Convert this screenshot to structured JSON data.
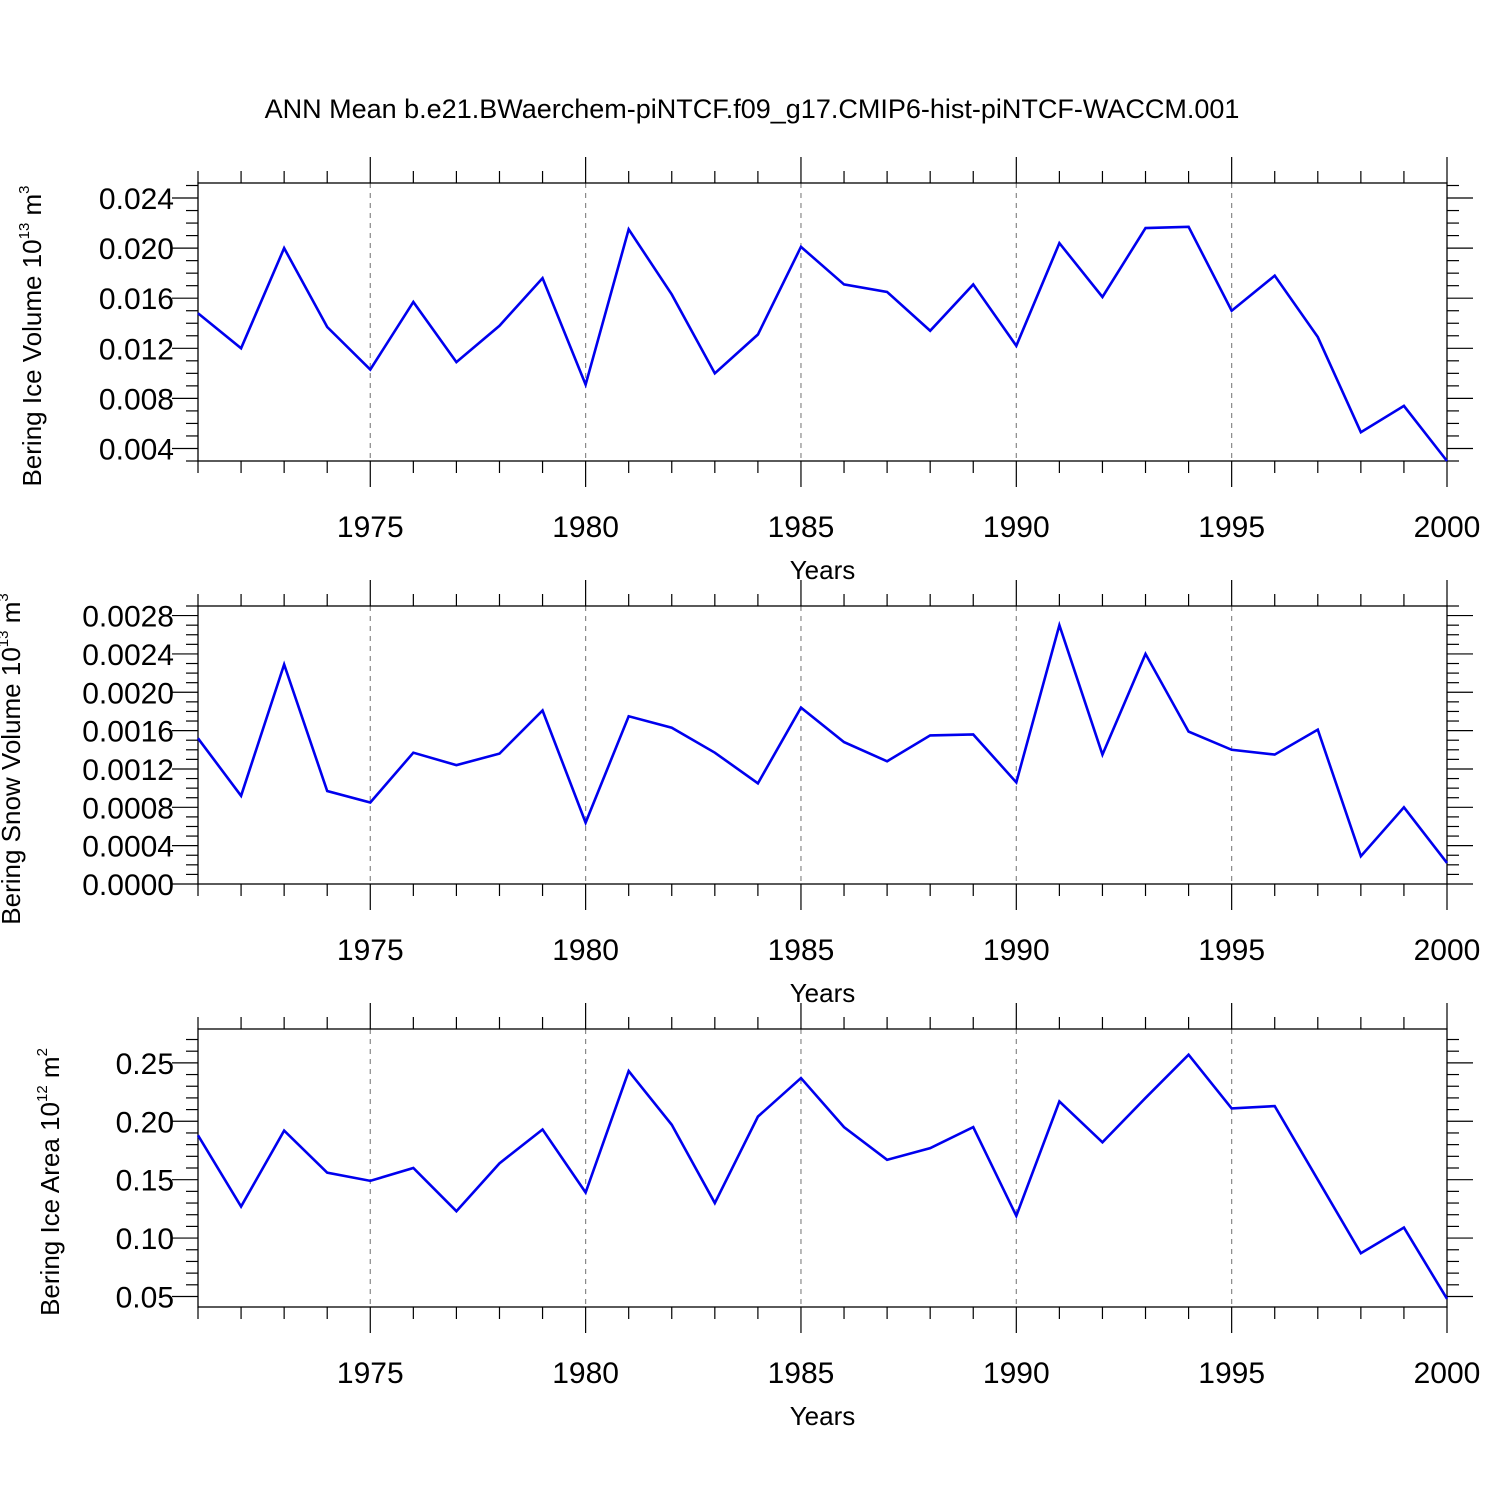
{
  "title": "ANN Mean b.e21.BWaerchem-piNTCF.f09_g17.CMIP6-hist-piNTCF-WACCM.001",
  "line_color": "#0000ee",
  "chart_data": [
    {
      "type": "line",
      "title": "ANN Mean b.e21.BWaerchem-piNTCF.f09_g17.CMIP6-hist-piNTCF-WACCM.001",
      "ylabel": {
        "main": "Bering Ice Volume 10",
        "exp": "13",
        "unit": " m",
        "unit_exp": "3"
      },
      "xlabel": "Years",
      "xlim": [
        1971,
        2000
      ],
      "ylim": [
        0.003,
        0.0252
      ],
      "x_ticks": [
        1975,
        1980,
        1985,
        1990,
        1995,
        2000
      ],
      "x_tick_labels": [
        "1975",
        "1980",
        "1985",
        "1990",
        "1995",
        "2000"
      ],
      "y_ticks": [
        0.004,
        0.008,
        0.012,
        0.016,
        0.02,
        0.024
      ],
      "y_tick_labels": [
        "0.004",
        "0.008",
        "0.012",
        "0.016",
        "0.020",
        "0.024"
      ],
      "y_minor_step": 0.001,
      "grid": "vertical dashed at major x ticks",
      "x": [
        1971,
        1972,
        1973,
        1974,
        1975,
        1976,
        1977,
        1978,
        1979,
        1980,
        1981,
        1982,
        1983,
        1984,
        1985,
        1986,
        1987,
        1988,
        1989,
        1990,
        1991,
        1992,
        1993,
        1994,
        1995,
        1996,
        1997,
        1998,
        1999,
        2000
      ],
      "values": [
        0.0148,
        0.012,
        0.02,
        0.0137,
        0.0103,
        0.0157,
        0.0109,
        0.0138,
        0.0176,
        0.0091,
        0.0215,
        0.0163,
        0.01,
        0.0131,
        0.0201,
        0.0171,
        0.0165,
        0.0134,
        0.0171,
        0.0122,
        0.0204,
        0.0161,
        0.0216,
        0.0217,
        0.015,
        0.0178,
        0.0129,
        0.0053,
        0.0074,
        0.003
      ]
    },
    {
      "type": "line",
      "ylabel": {
        "main": "Bering Snow Volume 10",
        "exp": "13",
        "unit": " m",
        "unit_exp": "3"
      },
      "xlabel": "Years",
      "xlim": [
        1971,
        2000
      ],
      "ylim": [
        0.0,
        0.0029
      ],
      "x_ticks": [
        1975,
        1980,
        1985,
        1990,
        1995,
        2000
      ],
      "x_tick_labels": [
        "1975",
        "1980",
        "1985",
        "1990",
        "1995",
        "2000"
      ],
      "y_ticks": [
        0.0,
        0.0004,
        0.0008,
        0.0012,
        0.0016,
        0.002,
        0.0024,
        0.0028
      ],
      "y_tick_labels": [
        "0.0000",
        "0.0004",
        "0.0008",
        "0.0012",
        "0.0016",
        "0.0020",
        "0.0024",
        "0.0028"
      ],
      "y_minor_step": 0.0001,
      "grid": "vertical dashed at major x ticks",
      "x": [
        1971,
        1972,
        1973,
        1974,
        1975,
        1976,
        1977,
        1978,
        1979,
        1980,
        1981,
        1982,
        1983,
        1984,
        1985,
        1986,
        1987,
        1988,
        1989,
        1990,
        1991,
        1992,
        1993,
        1994,
        1995,
        1996,
        1997,
        1998,
        1999,
        2000
      ],
      "values": [
        0.00152,
        0.00092,
        0.00229,
        0.00097,
        0.00085,
        0.00137,
        0.00124,
        0.00136,
        0.00181,
        0.00064,
        0.00175,
        0.00163,
        0.00137,
        0.00105,
        0.00184,
        0.00148,
        0.00128,
        0.00155,
        0.00156,
        0.00106,
        0.0027,
        0.00135,
        0.0024,
        0.00159,
        0.0014,
        0.00135,
        0.00161,
        0.00029,
        0.0008,
        0.00022
      ]
    },
    {
      "type": "line",
      "ylabel": {
        "main": "Bering Ice Area 10",
        "exp": "12",
        "unit": " m",
        "unit_exp": "2"
      },
      "xlabel": "Years",
      "xlim": [
        1971,
        2000
      ],
      "ylim": [
        0.041,
        0.279
      ],
      "x_ticks": [
        1975,
        1980,
        1985,
        1990,
        1995,
        2000
      ],
      "x_tick_labels": [
        "1975",
        "1980",
        "1985",
        "1990",
        "1995",
        "2000"
      ],
      "y_ticks": [
        0.05,
        0.1,
        0.15,
        0.2,
        0.25
      ],
      "y_tick_labels": [
        "0.05",
        "0.10",
        "0.15",
        "0.20",
        "0.25"
      ],
      "y_minor_step": 0.01,
      "grid": "vertical dashed at major x ticks",
      "x": [
        1971,
        1972,
        1973,
        1974,
        1975,
        1976,
        1977,
        1978,
        1979,
        1980,
        1981,
        1982,
        1983,
        1984,
        1985,
        1986,
        1987,
        1988,
        1989,
        1990,
        1991,
        1992,
        1993,
        1994,
        1995,
        1996,
        1997,
        1998,
        1999,
        2000
      ],
      "values": [
        0.188,
        0.127,
        0.192,
        0.156,
        0.149,
        0.16,
        0.123,
        0.164,
        0.193,
        0.139,
        0.243,
        0.197,
        0.13,
        0.204,
        0.237,
        0.195,
        0.167,
        0.177,
        0.195,
        0.119,
        0.217,
        0.182,
        0.22,
        0.257,
        0.211,
        0.213,
        0.15,
        0.087,
        0.109,
        0.048
      ]
    }
  ]
}
